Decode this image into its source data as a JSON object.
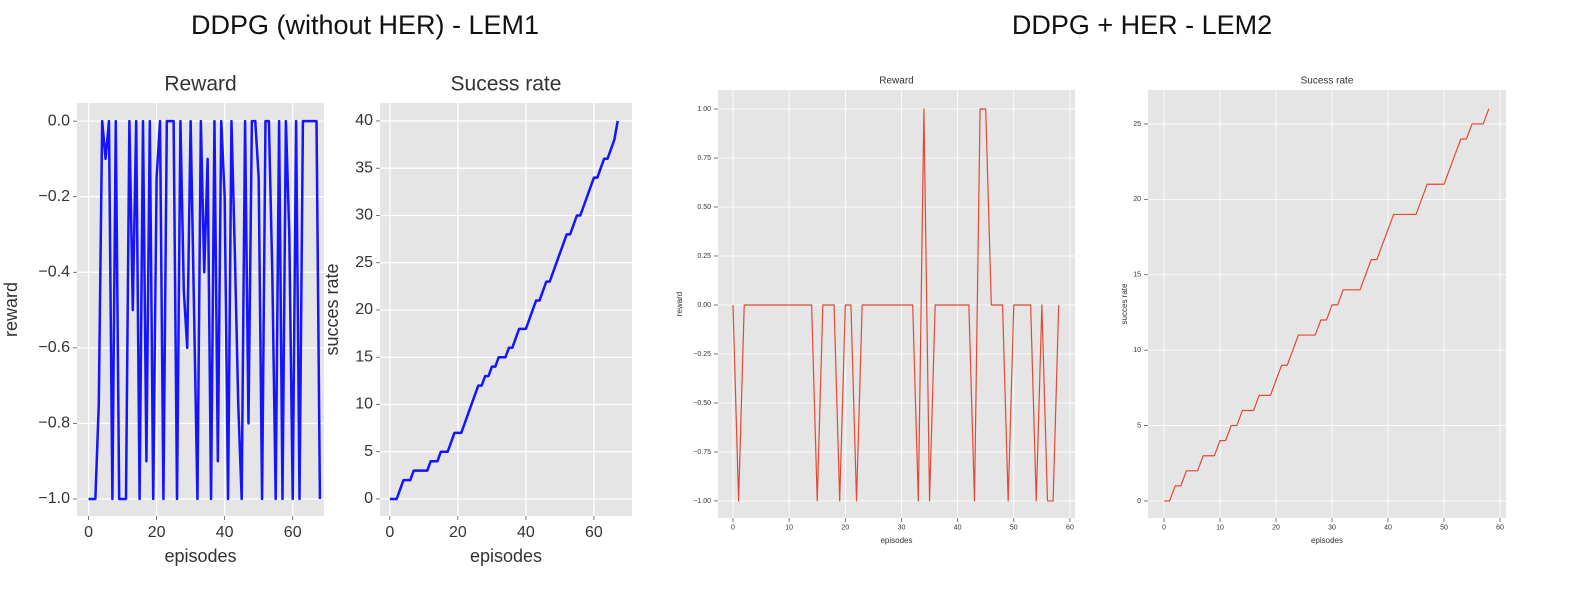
{
  "headings": [
    "DDPG (without HER) - LEM1",
    "DDPG + HER - LEM2"
  ],
  "chart_data": [
    {
      "type": "line",
      "title": "Reward",
      "xlabel": "episodes",
      "ylabel": "reward",
      "color": "#1414ff",
      "grid": true,
      "x": [
        0,
        1,
        2,
        3,
        4,
        5,
        6,
        7,
        8,
        9,
        10,
        11,
        12,
        13,
        14,
        15,
        16,
        17,
        18,
        19,
        20,
        21,
        22,
        23,
        24,
        25,
        26,
        27,
        28,
        29,
        30,
        31,
        32,
        33,
        34,
        35,
        36,
        37,
        38,
        39,
        40,
        41,
        42,
        43,
        44,
        45,
        46,
        47,
        48,
        49,
        50,
        51,
        52,
        53,
        54,
        55,
        56,
        57,
        58,
        59,
        60,
        61,
        62,
        63,
        64,
        65,
        66,
        67,
        68
      ],
      "values": [
        -1,
        -1,
        -1,
        -0.75,
        0,
        -0.1,
        0,
        -1,
        0,
        -1,
        -1,
        -1,
        0,
        -0.5,
        0,
        -1,
        0,
        -0.9,
        0,
        -1,
        -0.15,
        0,
        -1,
        0,
        0,
        0,
        -1,
        0,
        -0.45,
        -0.6,
        0,
        -0.5,
        -1,
        0,
        -0.4,
        -0.1,
        -1,
        0,
        -0.9,
        0,
        -0.2,
        -1,
        0,
        -0.35,
        -0.75,
        -1,
        0,
        -0.8,
        0,
        0,
        -0.15,
        -1,
        0,
        0,
        -0.4,
        -1,
        0,
        -1,
        0,
        -0.3,
        -1,
        0,
        -1,
        0,
        0,
        0,
        0,
        0,
        -1
      ],
      "xlim": [
        -3.4,
        69.2
      ],
      "ylim": [
        -1.045,
        0.048
      ],
      "xticks": [
        0,
        20,
        40,
        60
      ],
      "yticks": [
        {
          "value": 0,
          "label": "0.0"
        },
        {
          "value": -0.2,
          "label": "−0.2"
        },
        {
          "value": -0.4,
          "label": "−0.4"
        },
        {
          "value": -0.6,
          "label": "−0.6"
        },
        {
          "value": -0.8,
          "label": "−0.8"
        },
        {
          "value": -1,
          "label": "−1.0"
        }
      ]
    },
    {
      "type": "line",
      "title": "Sucess rate",
      "xlabel": "episodes",
      "ylabel": "succes rate",
      "color": "#1414ff",
      "grid": true,
      "x": [
        0,
        1,
        2,
        3,
        4,
        5,
        6,
        7,
        8,
        9,
        10,
        11,
        12,
        13,
        14,
        15,
        16,
        17,
        18,
        19,
        20,
        21,
        22,
        23,
        24,
        25,
        26,
        27,
        28,
        29,
        30,
        31,
        32,
        33,
        34,
        35,
        36,
        37,
        38,
        39,
        40,
        41,
        42,
        43,
        44,
        45,
        46,
        47,
        48,
        49,
        50,
        51,
        52,
        53,
        54,
        55,
        56,
        57,
        58,
        59,
        60,
        61,
        62,
        63,
        64,
        65,
        66,
        67
      ],
      "values": [
        0,
        0,
        0,
        1,
        2,
        2,
        2,
        3,
        3,
        3,
        3,
        3,
        4,
        4,
        4,
        5,
        5,
        5,
        6,
        7,
        7,
        7,
        8,
        9,
        10,
        11,
        12,
        12,
        13,
        13,
        14,
        14,
        15,
        15,
        15,
        16,
        16,
        17,
        18,
        18,
        18,
        19,
        20,
        21,
        21,
        22,
        23,
        23,
        24,
        25,
        26,
        27,
        28,
        28,
        29,
        30,
        30,
        31,
        32,
        33,
        34,
        34,
        35,
        36,
        36,
        37,
        38,
        40
      ],
      "xlim": [
        -2.9,
        71.2
      ],
      "ylim": [
        -1.8,
        41.9
      ],
      "xticks": [
        0,
        20,
        40,
        60
      ],
      "yticks": [
        0,
        5,
        10,
        15,
        20,
        25,
        30,
        35,
        40
      ]
    },
    {
      "type": "line",
      "title": "Reward",
      "xlabel": "episodes",
      "ylabel": "reward",
      "color": "#e24a33",
      "grid": true,
      "x": [
        0,
        1,
        2,
        3,
        4,
        5,
        6,
        7,
        8,
        9,
        10,
        11,
        12,
        13,
        14,
        15,
        16,
        17,
        18,
        19,
        20,
        21,
        22,
        23,
        24,
        25,
        26,
        27,
        28,
        29,
        30,
        31,
        32,
        33,
        34,
        35,
        36,
        37,
        38,
        39,
        40,
        41,
        42,
        43,
        44,
        45,
        46,
        47,
        48,
        49,
        50,
        51,
        52,
        53,
        54,
        55,
        56,
        57,
        58
      ],
      "values": [
        0,
        -1,
        0,
        0,
        0,
        0,
        0,
        0,
        0,
        0,
        0,
        0,
        0,
        0,
        0,
        -1,
        0,
        0,
        0,
        -1,
        0,
        0,
        -1,
        0,
        0,
        0,
        0,
        0,
        0,
        0,
        0,
        0,
        0,
        -1,
        1,
        -1,
        0,
        0,
        0,
        0,
        0,
        0,
        0,
        -1,
        1,
        1,
        0,
        0,
        0,
        -1,
        0,
        0,
        0,
        0,
        -1,
        0,
        -1,
        -1,
        0
      ],
      "xlim": [
        -2.67,
        60.9
      ],
      "ylim": [
        -1.087,
        1.097
      ],
      "xticks": [
        0,
        10,
        20,
        30,
        40,
        50,
        60
      ],
      "yticks": [
        {
          "value": 1,
          "label": "1.00"
        },
        {
          "value": 0.75,
          "label": "0.75"
        },
        {
          "value": 0.5,
          "label": "0.50"
        },
        {
          "value": 0.25,
          "label": "0.25"
        },
        {
          "value": 0,
          "label": "0.00"
        },
        {
          "value": -0.25,
          "label": "−0.25"
        },
        {
          "value": -0.5,
          "label": "−0.50"
        },
        {
          "value": -0.75,
          "label": "−0.75"
        },
        {
          "value": -1,
          "label": "−1.00"
        }
      ]
    },
    {
      "type": "line",
      "title": "Sucess rate",
      "xlabel": "episodes",
      "ylabel": "succes rate",
      "color": "#e24a33",
      "grid": true,
      "x": [
        0,
        1,
        2,
        3,
        4,
        5,
        6,
        7,
        8,
        9,
        10,
        11,
        12,
        13,
        14,
        15,
        16,
        17,
        18,
        19,
        20,
        21,
        22,
        23,
        24,
        25,
        26,
        27,
        28,
        29,
        30,
        31,
        32,
        33,
        34,
        35,
        36,
        37,
        38,
        39,
        40,
        41,
        42,
        43,
        44,
        45,
        46,
        47,
        48,
        49,
        50,
        51,
        52,
        53,
        54,
        55,
        56,
        57,
        58
      ],
      "values": [
        0,
        0,
        1,
        1,
        2,
        2,
        2,
        3,
        3,
        3,
        4,
        4,
        5,
        5,
        6,
        6,
        6,
        7,
        7,
        7,
        8,
        9,
        9,
        10,
        11,
        11,
        11,
        11,
        12,
        12,
        13,
        13,
        14,
        14,
        14,
        14,
        15,
        16,
        16,
        17,
        18,
        19,
        19,
        19,
        19,
        19,
        20,
        21,
        21,
        21,
        21,
        22,
        23,
        24,
        24,
        25,
        25,
        25,
        26
      ],
      "xlim": [
        -2.86,
        61.07
      ],
      "ylim": [
        -1.13,
        27.25
      ],
      "xticks": [
        0,
        10,
        20,
        30,
        40,
        50,
        60
      ],
      "yticks": [
        0,
        5,
        10,
        15,
        20,
        25
      ]
    }
  ]
}
